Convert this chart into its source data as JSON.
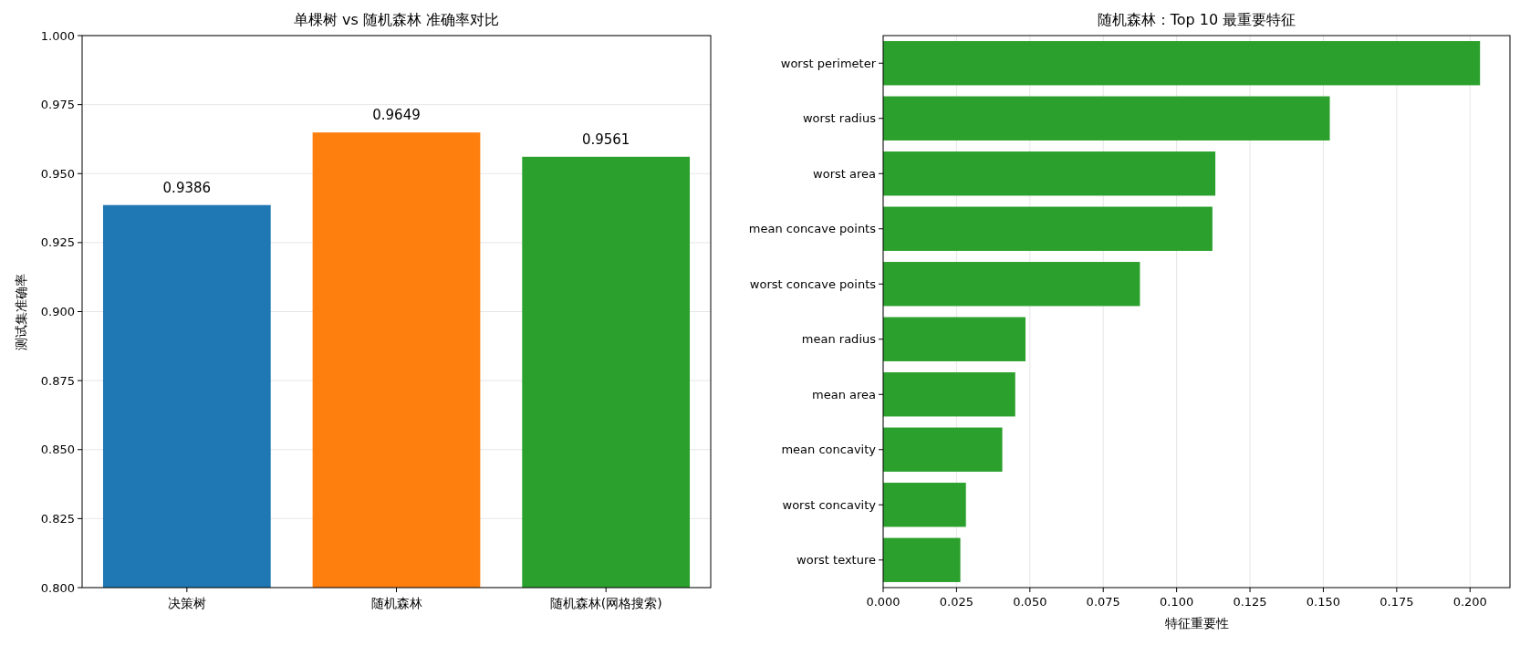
{
  "chart_data": [
    {
      "type": "bar",
      "title": "单棵树 vs 随机森林 准确率对比",
      "ylabel": "测试集准确率",
      "categories": [
        "决策树",
        "随机森林",
        "随机森林(网格搜索)"
      ],
      "values": [
        0.9386,
        0.9649,
        0.9561
      ],
      "colors": [
        "#1f77b4",
        "#ff7f0e",
        "#2ca02c"
      ],
      "ylim": [
        0.8,
        1.0
      ],
      "yticks": [
        {
          "value": 0.8,
          "label": "0.800"
        },
        0.825,
        {
          "value": 0.85,
          "label": "0.850"
        },
        0.875,
        {
          "value": 0.9,
          "label": "0.900"
        },
        0.925,
        {
          "value": 0.95,
          "label": "0.950"
        },
        0.975,
        {
          "value": 1.0,
          "label": "1.000"
        }
      ],
      "grid": "y",
      "data_labels": true
    },
    {
      "type": "bar",
      "orientation": "horizontal",
      "title": "随机森林：Top 10 最重要特征",
      "xlabel": "特征重要性",
      "categories": [
        "worst perimeter",
        "worst radius",
        "worst area",
        "mean concave points",
        "worst concave points",
        "mean radius",
        "mean area",
        "mean concavity",
        "worst concavity",
        "worst texture"
      ],
      "values": [
        0.2034,
        0.1522,
        0.1132,
        0.1122,
        0.0875,
        0.0485,
        0.045,
        0.0406,
        0.0282,
        0.0263
      ],
      "color": "#2ca02c",
      "xlim": [
        0,
        0.2136
      ],
      "xticks": [
        {
          "value": 0,
          "label": "0.000"
        },
        0.025,
        {
          "value": 0.05,
          "label": "0.050"
        },
        0.075,
        {
          "value": 0.1,
          "label": "0.100"
        },
        0.125,
        {
          "value": 0.15,
          "label": "0.150"
        },
        0.175,
        {
          "value": 0.2,
          "label": "0.200"
        }
      ],
      "grid": "x"
    }
  ]
}
